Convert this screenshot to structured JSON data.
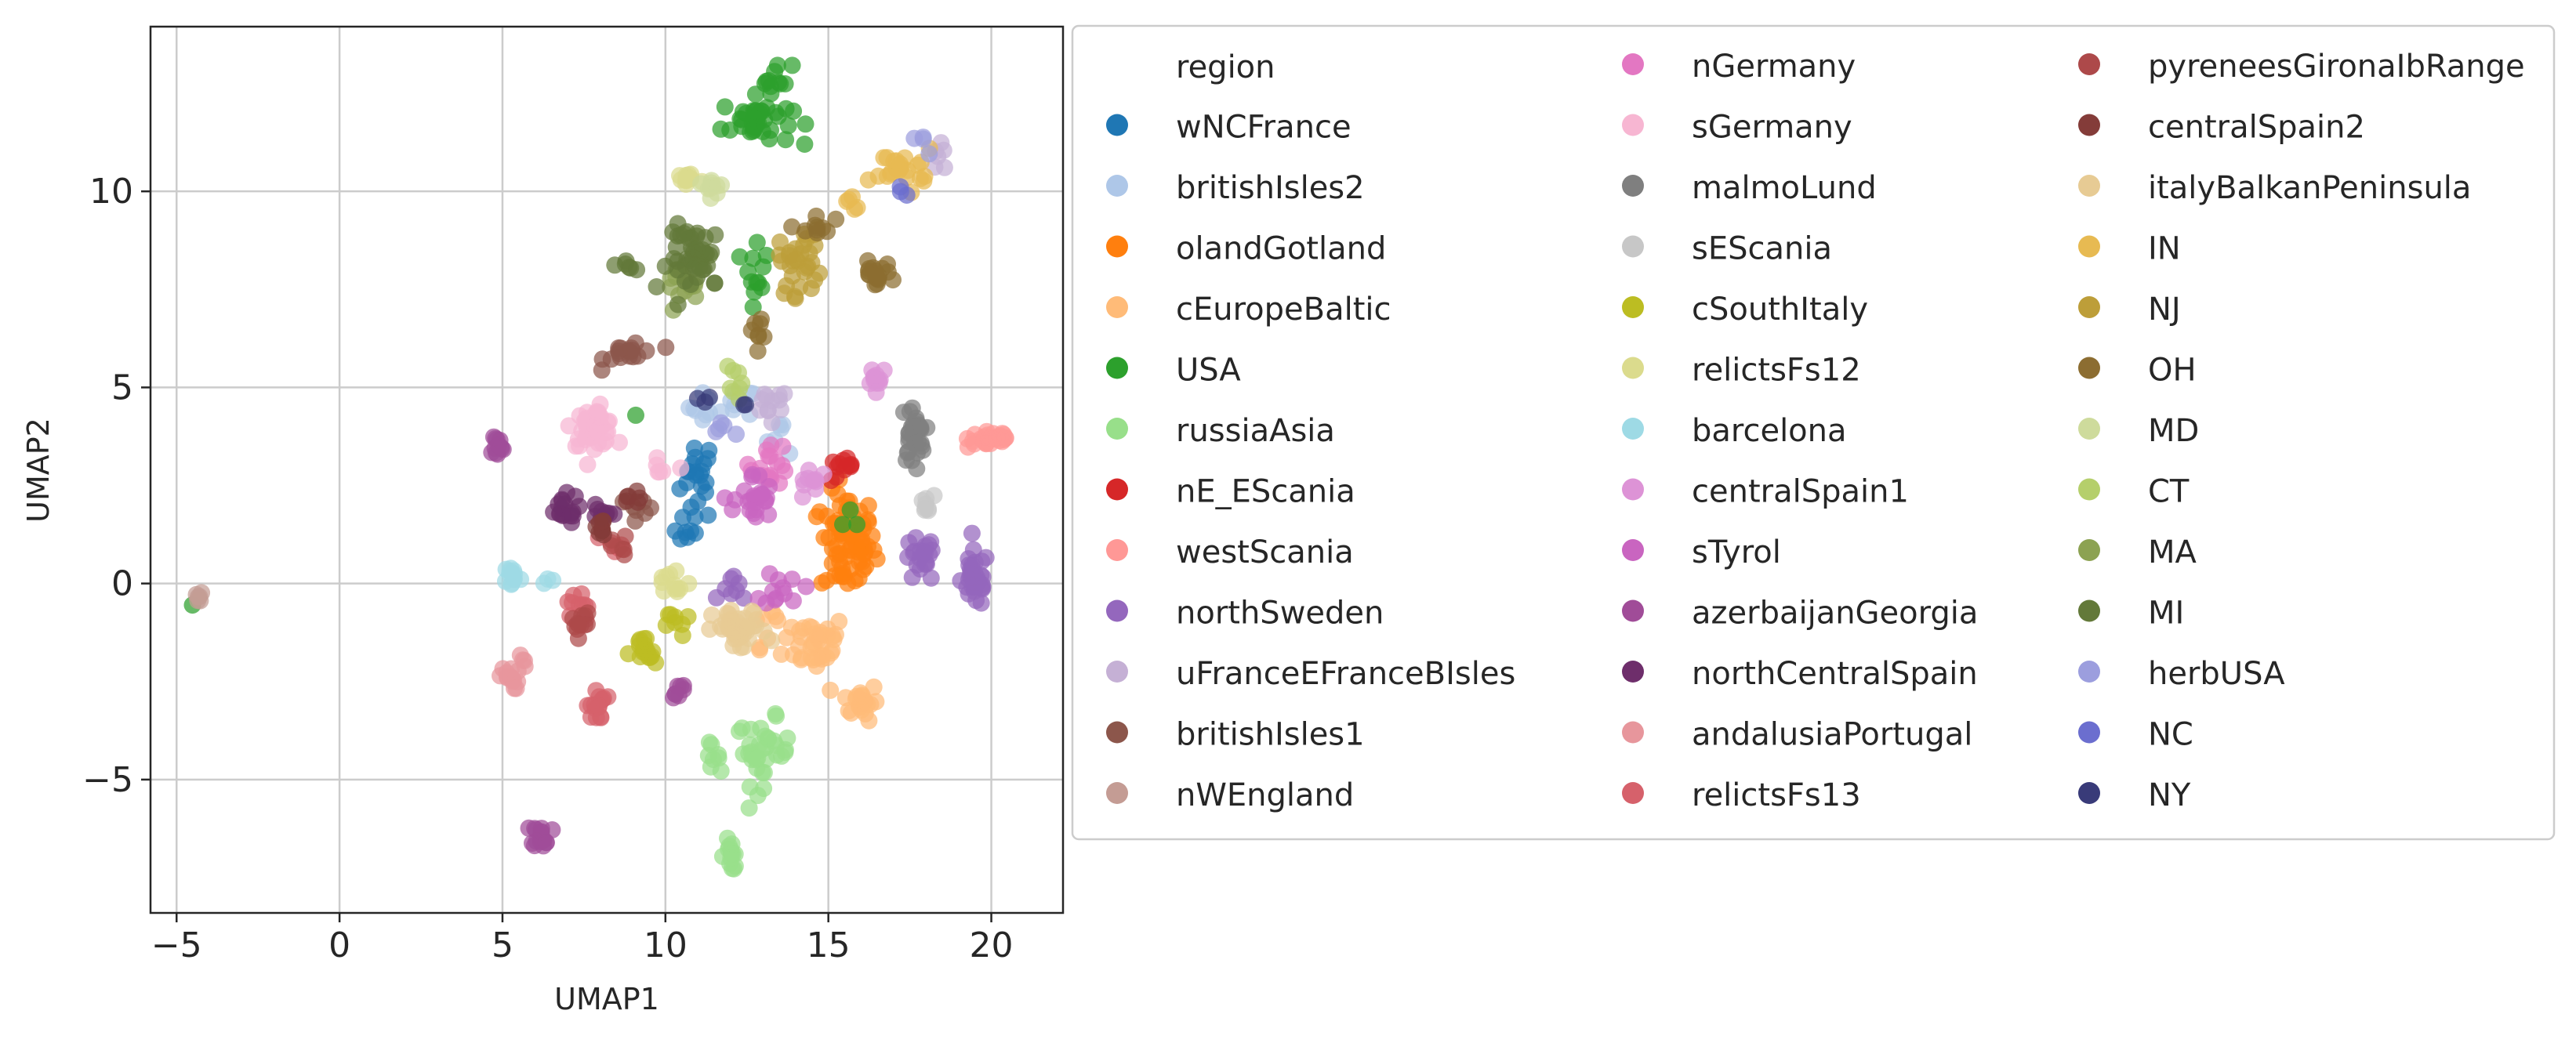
{
  "chart_data": {
    "type": "scatter",
    "title": "",
    "xlabel": "UMAP1",
    "ylabel": "UMAP2",
    "xlim": [
      -5.8,
      22.2
    ],
    "ylim": [
      -8.4,
      14.2
    ],
    "xticks": [
      -5,
      0,
      5,
      10,
      15,
      20
    ],
    "yticks": [
      -5,
      0,
      5,
      10
    ],
    "xtick_labels": [
      "−5",
      "0",
      "5",
      "10",
      "15",
      "20"
    ],
    "ytick_labels": [
      "−5",
      "0",
      "5",
      "10"
    ],
    "grid": true,
    "legend": {
      "title": "region",
      "placement": "right-outside",
      "columns": 3
    },
    "series": [
      {
        "name": "wNCFrance",
        "color": "#1f77b4",
        "clusters": [
          {
            "x": 11.0,
            "y": 2.7,
            "sx": 0.45,
            "sy": 0.9,
            "n": 22
          },
          {
            "x": 10.6,
            "y": 1.2,
            "sx": 0.3,
            "sy": 0.4,
            "n": 6
          }
        ]
      },
      {
        "name": "britishIsles2",
        "color": "#aec7e8",
        "clusters": [
          {
            "x": 11.8,
            "y": 4.5,
            "sx": 0.9,
            "sy": 0.4,
            "n": 16
          },
          {
            "x": 13.6,
            "y": 3.8,
            "sx": 0.5,
            "sy": 0.4,
            "n": 6
          }
        ]
      },
      {
        "name": "olandGotland",
        "color": "#ff7f0e",
        "clusters": [
          {
            "x": 15.6,
            "y": 1.0,
            "sx": 0.7,
            "sy": 1.1,
            "n": 75
          }
        ]
      },
      {
        "name": "cEuropeBaltic",
        "color": "#ffbb78",
        "clusters": [
          {
            "x": 14.6,
            "y": -1.5,
            "sx": 0.8,
            "sy": 0.6,
            "n": 35
          },
          {
            "x": 16.0,
            "y": -3.0,
            "sx": 0.45,
            "sy": 0.4,
            "n": 22
          },
          {
            "x": 13.2,
            "y": -1.0,
            "sx": 0.5,
            "sy": 0.5,
            "n": 10
          }
        ]
      },
      {
        "name": "USA",
        "color": "#2ca02c",
        "clusters": [
          {
            "x": 12.8,
            "y": 11.8,
            "sx": 0.9,
            "sy": 0.5,
            "n": 40
          },
          {
            "x": 13.4,
            "y": 12.9,
            "sx": 0.4,
            "sy": 0.3,
            "n": 10
          },
          {
            "x": 12.8,
            "y": 8.2,
            "sx": 0.3,
            "sy": 0.9,
            "n": 12
          },
          {
            "x": -4.5,
            "y": -0.6,
            "sx": 0.05,
            "sy": 0.05,
            "n": 1
          },
          {
            "x": 9.1,
            "y": 4.2,
            "sx": 0.1,
            "sy": 0.1,
            "n": 1
          },
          {
            "x": 15.8,
            "y": 1.6,
            "sx": 0.3,
            "sy": 0.4,
            "n": 3
          }
        ]
      },
      {
        "name": "russiaAsia",
        "color": "#98df8a",
        "clusters": [
          {
            "x": 13.0,
            "y": -4.3,
            "sx": 0.7,
            "sy": 0.7,
            "n": 35
          },
          {
            "x": 12.0,
            "y": -6.9,
            "sx": 0.25,
            "sy": 0.35,
            "n": 14
          },
          {
            "x": 11.3,
            "y": -4.4,
            "sx": 0.3,
            "sy": 0.25,
            "n": 8
          }
        ]
      },
      {
        "name": "nE_EScania",
        "color": "#d62728",
        "clusters": [
          {
            "x": 15.5,
            "y": 2.9,
            "sx": 0.5,
            "sy": 0.25,
            "n": 12
          }
        ]
      },
      {
        "name": "westScania",
        "color": "#ff9896",
        "clusters": [
          {
            "x": 20.0,
            "y": 3.7,
            "sx": 0.6,
            "sy": 0.2,
            "n": 30
          }
        ]
      },
      {
        "name": "northSweden",
        "color": "#9467bd",
        "clusters": [
          {
            "x": 19.5,
            "y": 0.1,
            "sx": 0.35,
            "sy": 0.6,
            "n": 35
          },
          {
            "x": 17.8,
            "y": 0.6,
            "sx": 0.4,
            "sy": 0.5,
            "n": 22
          },
          {
            "x": 12.2,
            "y": -0.2,
            "sx": 0.4,
            "sy": 0.3,
            "n": 8
          }
        ]
      },
      {
        "name": "uFranceEFranceBIsles",
        "color": "#c5b0d5",
        "clusters": [
          {
            "x": 13.2,
            "y": 4.5,
            "sx": 0.5,
            "sy": 0.4,
            "n": 12
          },
          {
            "x": 18.4,
            "y": 10.8,
            "sx": 0.3,
            "sy": 0.3,
            "n": 6
          }
        ]
      },
      {
        "name": "britishIsles1",
        "color": "#8c564b",
        "clusters": [
          {
            "x": 9.0,
            "y": 5.9,
            "sx": 0.7,
            "sy": 0.3,
            "n": 18
          },
          {
            "x": 9.3,
            "y": 1.9,
            "sx": 0.35,
            "sy": 0.3,
            "n": 7
          }
        ]
      },
      {
        "name": "nWEngland",
        "color": "#c49c94",
        "clusters": [
          {
            "x": -4.3,
            "y": -0.35,
            "sx": 0.1,
            "sy": 0.1,
            "n": 6
          }
        ]
      },
      {
        "name": "nGermany",
        "color": "#e377c2",
        "clusters": [
          {
            "x": 13.2,
            "y": 3.1,
            "sx": 0.5,
            "sy": 0.5,
            "n": 18
          }
        ]
      },
      {
        "name": "sGermany",
        "color": "#f7b6d2",
        "clusters": [
          {
            "x": 7.8,
            "y": 4.0,
            "sx": 0.55,
            "sy": 0.4,
            "n": 45
          },
          {
            "x": 9.9,
            "y": 2.8,
            "sx": 0.3,
            "sy": 0.3,
            "n": 6
          }
        ]
      },
      {
        "name": "malmoLund",
        "color": "#7f7f7f",
        "clusters": [
          {
            "x": 17.6,
            "y": 3.8,
            "sx": 0.3,
            "sy": 0.65,
            "n": 30
          }
        ]
      },
      {
        "name": "sEScania",
        "color": "#c7c7c7",
        "clusters": [
          {
            "x": 18.0,
            "y": 2.0,
            "sx": 0.2,
            "sy": 0.2,
            "n": 8
          }
        ]
      },
      {
        "name": "cSouthItaly",
        "color": "#bcbd22",
        "clusters": [
          {
            "x": 9.3,
            "y": -1.8,
            "sx": 0.35,
            "sy": 0.4,
            "n": 18
          },
          {
            "x": 10.4,
            "y": -1.0,
            "sx": 0.3,
            "sy": 0.3,
            "n": 8
          }
        ]
      },
      {
        "name": "relictsFs12",
        "color": "#dbdb8d",
        "clusters": [
          {
            "x": 10.7,
            "y": 10.3,
            "sx": 0.4,
            "sy": 0.2,
            "n": 16
          },
          {
            "x": 10.2,
            "y": 0.0,
            "sx": 0.5,
            "sy": 0.4,
            "n": 12
          }
        ]
      },
      {
        "name": "barcelona",
        "color": "#9edae5",
        "clusters": [
          {
            "x": 5.3,
            "y": 0.2,
            "sx": 0.2,
            "sy": 0.25,
            "n": 14
          },
          {
            "x": 6.4,
            "y": 0.1,
            "sx": 0.15,
            "sy": 0.1,
            "n": 3
          }
        ]
      },
      {
        "name": "centralSpain1",
        "color": "#dd93d6",
        "clusters": [
          {
            "x": 16.5,
            "y": 5.3,
            "sx": 0.3,
            "sy": 0.25,
            "n": 12
          },
          {
            "x": 14.5,
            "y": 2.6,
            "sx": 0.4,
            "sy": 0.4,
            "n": 10
          }
        ]
      },
      {
        "name": "sTyrol",
        "color": "#c965c0",
        "clusters": [
          {
            "x": 12.7,
            "y": 2.1,
            "sx": 0.5,
            "sy": 0.6,
            "n": 25
          },
          {
            "x": 13.6,
            "y": -0.1,
            "sx": 0.5,
            "sy": 0.4,
            "n": 12
          }
        ]
      },
      {
        "name": "azerbaijanGeorgia",
        "color": "#a04c98",
        "clusters": [
          {
            "x": 6.2,
            "y": -6.4,
            "sx": 0.25,
            "sy": 0.25,
            "n": 18
          },
          {
            "x": 4.8,
            "y": 3.5,
            "sx": 0.2,
            "sy": 0.3,
            "n": 12
          },
          {
            "x": 10.4,
            "y": -2.8,
            "sx": 0.25,
            "sy": 0.3,
            "n": 8
          }
        ]
      },
      {
        "name": "northCentralSpain",
        "color": "#6e2e6b",
        "clusters": [
          {
            "x": 6.8,
            "y": 1.9,
            "sx": 0.45,
            "sy": 0.3,
            "n": 18
          },
          {
            "x": 8.0,
            "y": 1.7,
            "sx": 0.3,
            "sy": 0.3,
            "n": 10
          }
        ]
      },
      {
        "name": "andalusiaPortugal",
        "color": "#e7969c",
        "clusters": [
          {
            "x": 5.2,
            "y": -2.4,
            "sx": 0.25,
            "sy": 0.25,
            "n": 14
          },
          {
            "x": 5.7,
            "y": -2.0,
            "sx": 0.15,
            "sy": 0.15,
            "n": 4
          }
        ]
      },
      {
        "name": "relictsFs13",
        "color": "#d6616b",
        "clusters": [
          {
            "x": 7.9,
            "y": -3.1,
            "sx": 0.25,
            "sy": 0.35,
            "n": 16
          },
          {
            "x": 7.3,
            "y": -0.6,
            "sx": 0.3,
            "sy": 0.4,
            "n": 10
          },
          {
            "x": 8.3,
            "y": 1.1,
            "sx": 0.3,
            "sy": 0.3,
            "n": 6
          }
        ]
      },
      {
        "name": "pyreneesGironaIbRange",
        "color": "#ad494a",
        "clusters": [
          {
            "x": 7.4,
            "y": -1.0,
            "sx": 0.25,
            "sy": 0.3,
            "n": 12
          },
          {
            "x": 8.6,
            "y": 0.9,
            "sx": 0.2,
            "sy": 0.25,
            "n": 6
          }
        ]
      },
      {
        "name": "centralSpain2",
        "color": "#843c39",
        "clusters": [
          {
            "x": 8.0,
            "y": 1.4,
            "sx": 0.3,
            "sy": 0.3,
            "n": 10
          },
          {
            "x": 9.0,
            "y": 2.1,
            "sx": 0.25,
            "sy": 0.2,
            "n": 6
          }
        ]
      },
      {
        "name": "italyBalkanPeninsula",
        "color": "#e7cb94",
        "clusters": [
          {
            "x": 12.3,
            "y": -1.2,
            "sx": 0.7,
            "sy": 0.45,
            "n": 40
          }
        ]
      },
      {
        "name": "IN",
        "color": "#e7ba52",
        "clusters": [
          {
            "x": 17.3,
            "y": 10.6,
            "sx": 0.8,
            "sy": 0.4,
            "n": 25
          },
          {
            "x": 15.5,
            "y": 9.7,
            "sx": 0.3,
            "sy": 0.2,
            "n": 5
          }
        ]
      },
      {
        "name": "NJ",
        "color": "#bd9e39",
        "clusters": [
          {
            "x": 14.2,
            "y": 8.2,
            "sx": 0.6,
            "sy": 0.7,
            "n": 30
          }
        ]
      },
      {
        "name": "OH",
        "color": "#8c6d31",
        "clusters": [
          {
            "x": 16.4,
            "y": 7.9,
            "sx": 0.45,
            "sy": 0.25,
            "n": 18
          },
          {
            "x": 14.6,
            "y": 9.0,
            "sx": 0.4,
            "sy": 0.4,
            "n": 10
          },
          {
            "x": 12.8,
            "y": 6.5,
            "sx": 0.4,
            "sy": 0.4,
            "n": 8
          }
        ]
      },
      {
        "name": "MD",
        "color": "#cedb9c",
        "clusters": [
          {
            "x": 11.5,
            "y": 10.2,
            "sx": 0.4,
            "sy": 0.2,
            "n": 10
          }
        ]
      },
      {
        "name": "CT",
        "color": "#b5cf6b",
        "clusters": [
          {
            "x": 12.2,
            "y": 5.0,
            "sx": 0.3,
            "sy": 0.4,
            "n": 8
          }
        ]
      },
      {
        "name": "MA",
        "color": "#8ca252",
        "clusters": [
          {
            "x": 10.4,
            "y": 7.6,
            "sx": 0.5,
            "sy": 0.4,
            "n": 14
          }
        ]
      },
      {
        "name": "MI",
        "color": "#637939",
        "clusters": [
          {
            "x": 11.0,
            "y": 8.3,
            "sx": 0.75,
            "sy": 0.7,
            "n": 45
          },
          {
            "x": 8.9,
            "y": 8.1,
            "sx": 0.2,
            "sy": 0.2,
            "n": 6
          }
        ]
      },
      {
        "name": "herbUSA",
        "color": "#9c9ede",
        "clusters": [
          {
            "x": 18.0,
            "y": 11.2,
            "sx": 0.3,
            "sy": 0.2,
            "n": 4
          },
          {
            "x": 11.7,
            "y": 4.0,
            "sx": 0.3,
            "sy": 0.3,
            "n": 5
          }
        ]
      },
      {
        "name": "NC",
        "color": "#6b6ecf",
        "clusters": [
          {
            "x": 17.2,
            "y": 10.0,
            "sx": 0.2,
            "sy": 0.2,
            "n": 3
          }
        ]
      },
      {
        "name": "NY",
        "color": "#393b79",
        "clusters": [
          {
            "x": 11.2,
            "y": 4.6,
            "sx": 0.2,
            "sy": 0.2,
            "n": 3
          },
          {
            "x": 12.3,
            "y": 4.6,
            "sx": 0.15,
            "sy": 0.15,
            "n": 2
          }
        ]
      }
    ]
  }
}
